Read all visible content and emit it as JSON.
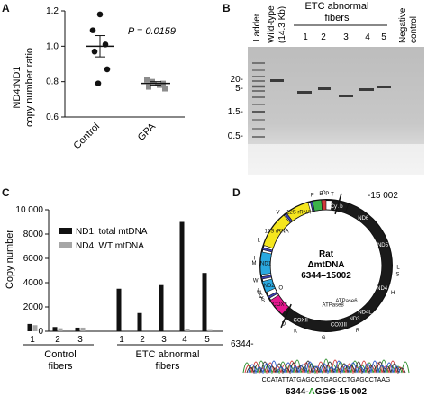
{
  "panels": {
    "A": {
      "letter": "A",
      "ylabel_line1": "ND4:ND1",
      "ylabel_line2": "copy number ratio",
      "yticks": [
        "1.2",
        "1.0",
        "0.8",
        "0.6"
      ],
      "pvalue": "P = 0.0159",
      "groups": [
        "Control",
        "GPA"
      ]
    },
    "B": {
      "letter": "B",
      "col_ladder": "Ladder",
      "col_wt1": "Wild-type",
      "col_wt2": "(14.3 Kb)",
      "etc_line1": "ETC abnormal",
      "etc_line2": "fibers",
      "lane_numbers": [
        "1",
        "2",
        "3",
        "4",
        "5"
      ],
      "neg1": "Negative",
      "neg2": "control",
      "size_labels": [
        "20-",
        "5-",
        "1.5-",
        "0.5-"
      ]
    },
    "C": {
      "letter": "C",
      "ylabel": "Copy number",
      "yticks": [
        "10 000",
        "8000",
        "6000",
        "4000",
        "2000",
        "0"
      ],
      "control_label": "Control",
      "control_label2": "fibers",
      "etc_label": "ETC abnormal",
      "etc_label2": "fibers"
    },
    "D": {
      "letter": "D",
      "center_title": "Rat",
      "center_sub": "ΔmtDNA",
      "center_range": "6344–15002",
      "pos_top": "-15 002",
      "pos_left": "6344-",
      "sequence_text": "CCATATTATGAGCCTGAGCCTGAGCCTAAG",
      "junction_prefix": "6344-",
      "junction_highlight": "A",
      "junction_suffix": "GGG-15 002",
      "genes": [
        "12S rRNA",
        "16S rRNA",
        "ND1",
        "ND2",
        "COX I",
        "Cyt b",
        "ND6",
        "ND5",
        "ND4",
        "ND4L",
        "ND3",
        "COXIII",
        "ATPase6",
        "ATPase8",
        "COXII"
      ],
      "trna": [
        "F",
        "V",
        "L",
        "I",
        "M",
        "W",
        "A",
        "N",
        "C",
        "Y",
        "S",
        "D",
        "K",
        "G",
        "R",
        "H",
        "S",
        "L",
        "E",
        "T",
        "P"
      ],
      "origins": [
        "O",
        "O"
      ]
    }
  },
  "chart_data": [
    {
      "type": "scatter",
      "title": "",
      "xlabel": "",
      "ylabel": "ND4:ND1 copy number ratio",
      "ylim": [
        0.6,
        1.2
      ],
      "categories": [
        "Control",
        "GPA"
      ],
      "series": [
        {
          "name": "Control",
          "values": [
            1.18,
            1.09,
            1.01,
            0.97,
            0.87,
            0.79
          ],
          "mean": 1.0,
          "sem": 0.06
        },
        {
          "name": "GPA",
          "values": [
            0.81,
            0.8,
            0.79,
            0.78,
            0.77,
            0.76
          ],
          "mean": 0.79,
          "sem": 0.01
        }
      ],
      "annotation": "P = 0.0159"
    },
    {
      "type": "bar",
      "title": "",
      "xlabel": "",
      "ylabel": "Copy number",
      "ylim": [
        0,
        10000
      ],
      "categories": [
        "1",
        "2",
        "3",
        "1",
        "2",
        "3",
        "4",
        "5"
      ],
      "groups": [
        {
          "label": "Control fibers",
          "categories": [
            "1",
            "2",
            "3"
          ]
        },
        {
          "label": "ETC abnormal fibers",
          "categories": [
            "1",
            "2",
            "3",
            "4",
            "5"
          ]
        }
      ],
      "series": [
        {
          "name": "ND1, total mtDNA",
          "color": "#111111",
          "values": [
            600,
            350,
            300,
            3500,
            1500,
            3800,
            9000,
            4800
          ]
        },
        {
          "name": "ND4, WT mtDNA",
          "color": "#a6a6a6",
          "values": [
            500,
            250,
            300,
            0,
            0,
            0,
            200,
            100
          ]
        }
      ],
      "legend_position": "top-left"
    }
  ]
}
